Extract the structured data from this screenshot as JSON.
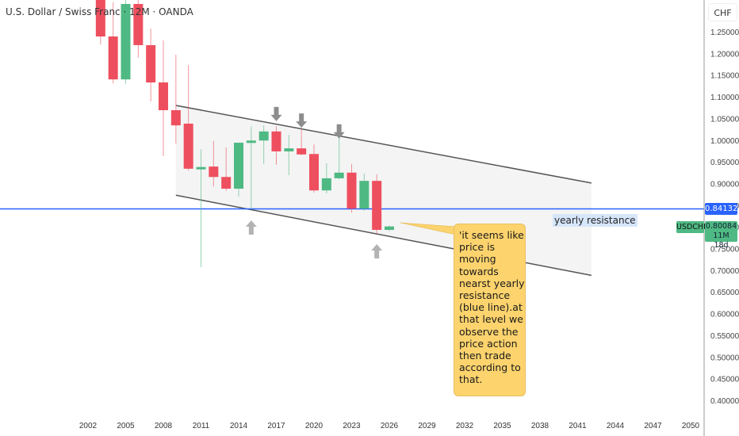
{
  "header": {
    "title": "U.S. Dollar / Swiss Franc · 12M · OANDA"
  },
  "axis": {
    "currency": "CHF"
  },
  "colors": {
    "up": "#4fb983",
    "down": "#ee4f5e",
    "resistance": "#2962ff",
    "channel_fill": "#f4f4f4",
    "channel_line": "#555555",
    "arrow": "#999999",
    "callout": "#fcd36d"
  },
  "resistance": {
    "price": 0.84132,
    "price_label": "0.84132",
    "label": "yearly  resistance"
  },
  "last": {
    "symbol": "USDCHF",
    "price_label": "0.80084",
    "countdown": "11M 18d"
  },
  "callout": {
    "lines": [
      "'it seems like",
      "price is",
      "moving",
      "towards",
      "nearst yearly",
      "resistance",
      "(blue line).at",
      "that level we",
      "observe the",
      "price action",
      "then trade",
      "according to",
      "that."
    ]
  },
  "chart_data": {
    "type": "candlestick",
    "title": "U.S. Dollar / Swiss Franc · 12M · OANDA",
    "ylim": [
      0.38,
      1.32
    ],
    "y_ticks": [
      "1.25000",
      "1.20000",
      "1.15000",
      "1.10000",
      "1.05000",
      "1.00000",
      "0.95000",
      "0.90000",
      "0.85000",
      "0.80000",
      "0.75000",
      "0.70000",
      "0.65000",
      "0.60000",
      "0.55000",
      "0.50000",
      "0.45000",
      "0.40000"
    ],
    "x_ticks": [
      "2002",
      "2005",
      "2008",
      "2011",
      "2014",
      "2017",
      "2020",
      "2023",
      "2026",
      "2029",
      "2032",
      "2035",
      "2038",
      "2041",
      "2044",
      "2047",
      "2050"
    ],
    "candles": [
      {
        "year": 2003,
        "o": 1.34,
        "h": 1.36,
        "l": 1.22,
        "c": 1.239
      },
      {
        "year": 2004,
        "o": 1.239,
        "h": 1.318,
        "l": 1.131,
        "c": 1.14
      },
      {
        "year": 2005,
        "o": 1.14,
        "h": 1.34,
        "l": 1.13,
        "c": 1.314
      },
      {
        "year": 2006,
        "o": 1.314,
        "h": 1.33,
        "l": 1.19,
        "c": 1.219
      },
      {
        "year": 2007,
        "o": 1.219,
        "h": 1.257,
        "l": 1.089,
        "c": 1.133
      },
      {
        "year": 2008,
        "o": 1.133,
        "h": 1.23,
        "l": 0.963,
        "c": 1.069
      },
      {
        "year": 2009,
        "o": 1.069,
        "h": 1.197,
        "l": 0.992,
        "c": 1.034
      },
      {
        "year": 2010,
        "o": 1.038,
        "h": 1.173,
        "l": 0.93,
        "c": 0.934
      },
      {
        "year": 2011,
        "o": 0.936,
        "h": 0.979,
        "l": 0.707,
        "c": 0.938
      },
      {
        "year": 2012,
        "o": 0.939,
        "h": 0.998,
        "l": 0.893,
        "c": 0.915
      },
      {
        "year": 2013,
        "o": 0.915,
        "h": 0.983,
        "l": 0.883,
        "c": 0.888
      },
      {
        "year": 2014,
        "o": 0.888,
        "h": 0.994,
        "l": 0.87,
        "c": 0.994
      },
      {
        "year": 2015,
        "o": 0.994,
        "h": 1.032,
        "l": 0.84,
        "c": 0.999
      },
      {
        "year": 2016,
        "o": 0.999,
        "h": 1.034,
        "l": 0.945,
        "c": 1.02
      },
      {
        "year": 2017,
        "o": 1.02,
        "h": 1.032,
        "l": 0.943,
        "c": 0.974
      },
      {
        "year": 2018,
        "o": 0.974,
        "h": 1.012,
        "l": 0.919,
        "c": 0.981
      },
      {
        "year": 2019,
        "o": 0.981,
        "h": 1.025,
        "l": 0.965,
        "c": 0.967
      },
      {
        "year": 2020,
        "o": 0.968,
        "h": 0.99,
        "l": 0.879,
        "c": 0.884
      },
      {
        "year": 2021,
        "o": 0.884,
        "h": 0.947,
        "l": 0.877,
        "c": 0.912
      },
      {
        "year": 2022,
        "o": 0.912,
        "h": 1.016,
        "l": 0.91,
        "c": 0.925
      },
      {
        "year": 2023,
        "o": 0.925,
        "h": 0.945,
        "l": 0.833,
        "c": 0.842
      },
      {
        "year": 2024,
        "o": 0.842,
        "h": 0.923,
        "l": 0.837,
        "c": 0.906
      },
      {
        "year": 2025,
        "o": 0.906,
        "h": 0.921,
        "l": 0.784,
        "c": 0.793
      },
      {
        "year": 2026,
        "o": 0.793,
        "h": 0.803,
        "l": 0.79,
        "c": 0.80084
      }
    ],
    "channel": {
      "upper": [
        [
          2009.0,
          1.08
        ],
        [
          2042.1,
          0.901
        ]
      ],
      "lower": [
        [
          2009.0,
          0.873
        ],
        [
          2042.1,
          0.688
        ]
      ]
    },
    "arrows_down": [
      2017,
      2019,
      2022
    ],
    "arrows_up": [
      2015,
      2025
    ]
  }
}
